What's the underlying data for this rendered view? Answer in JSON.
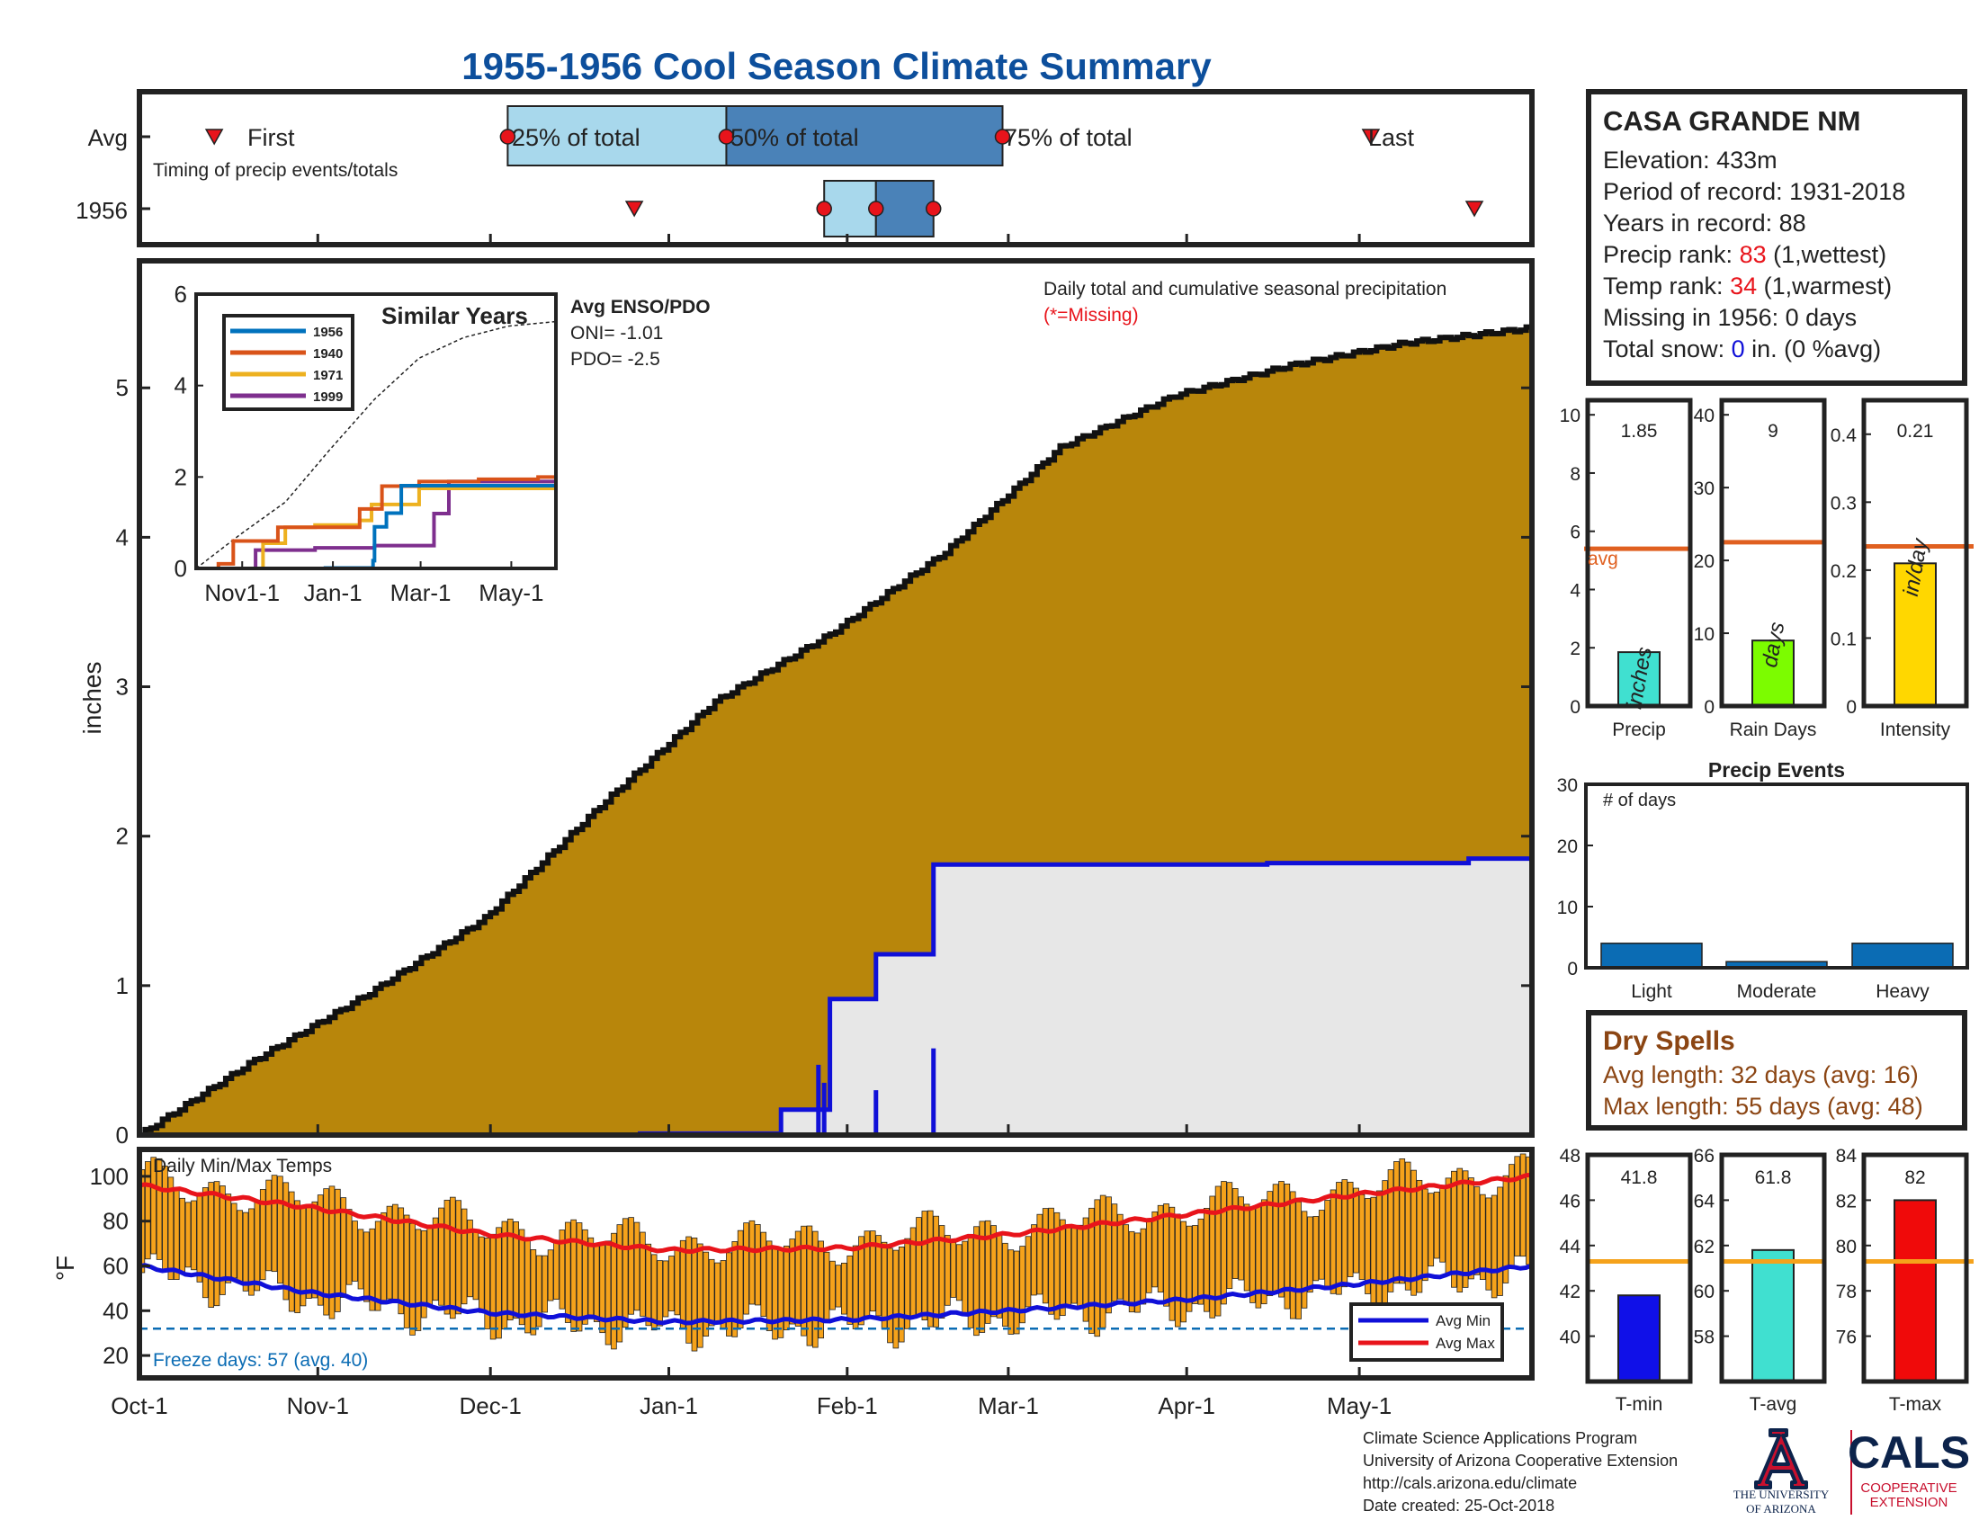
{
  "title": "1955-1956 Cool Season Climate Summary",
  "colors": {
    "title": "#0d4f9c",
    "accent_red": "#e8141b",
    "precip_fill": "#b8860b",
    "avg_precip_fill": "#e7e7e7",
    "avg_line": "#1010d8",
    "temp_bar": "#f5a21b",
    "avg_bar_line": "#e06020",
    "temp_avg_line": "#f5a21b",
    "light_blue": "#a8d8ec",
    "mid_blue": "#4a82b8",
    "bar_blue": "#0b6cb4",
    "brown_text": "#8b4513"
  },
  "timing": {
    "row_labels": [
      "Avg",
      "1956"
    ],
    "caption": "Timing of precip events/totals",
    "avg_labels": {
      "first": "First",
      "q25": "25% of total",
      "q50": "50% of total",
      "q75": "75% of total",
      "last": "Last"
    }
  },
  "station": {
    "name": "CASA GRANDE NM",
    "elevation": "Elevation: 433m",
    "period": "Period of record: 1931-2018",
    "years": "Years in record: 88",
    "precip_rank_prefix": "Precip rank: ",
    "precip_rank": "83",
    "precip_rank_suffix": " (1,wettest)",
    "temp_rank_prefix": "Temp rank: ",
    "temp_rank": "34",
    "temp_rank_suffix": " (1,warmest)",
    "missing": "Missing in 1956: 0 days",
    "snow_prefix": "Total snow: ",
    "snow_value": "0",
    "snow_suffix": " in. (0 %avg)"
  },
  "main_chart": {
    "ylabel": "inches",
    "yticks": [
      "0",
      "1",
      "2",
      "3",
      "4",
      "5"
    ],
    "caption": "Daily total and cumulative seasonal precipitation",
    "missing_note": "(*=Missing)",
    "xticks": [
      "Oct-1",
      "Nov-1",
      "Dec-1",
      "Jan-1",
      "Feb-1",
      "Mar-1",
      "Apr-1",
      "May-1"
    ]
  },
  "inset": {
    "title": "Similar Years",
    "legend": [
      "1956",
      "1940",
      "1971",
      "1999"
    ],
    "yticks": [
      "0",
      "2",
      "4",
      "6"
    ],
    "xticks": [
      "Nov1-1",
      "Jan-1",
      "Mar-1",
      "May-1"
    ],
    "enso_title": "Avg ENSO/PDO",
    "oni": "ONI= -1.01",
    "pdo": "PDO= -2.5"
  },
  "small_bars": [
    {
      "label": "Precip",
      "value_label": "1.85",
      "unit": "inches",
      "avg_label": "avg",
      "yticks": [
        "0",
        "2",
        "4",
        "6",
        "8",
        "10"
      ]
    },
    {
      "label": "Rain Days",
      "value_label": "9",
      "unit": "days",
      "yticks": [
        "0",
        "10",
        "20",
        "30",
        "40"
      ]
    },
    {
      "label": "Intensity",
      "value_label": "0.21",
      "unit": "in/day",
      "yticks": [
        "0",
        "0.1",
        "0.2",
        "0.3",
        "0.4"
      ]
    }
  ],
  "events": {
    "title": "Precip Events",
    "sublabel": "# of days",
    "yticks": [
      "0",
      "10",
      "20",
      "30"
    ],
    "categories": [
      "Light",
      "Moderate",
      "Heavy"
    ]
  },
  "dry_spells": {
    "title": "Dry Spells",
    "avg": "Avg length: 32 days (avg: 16)",
    "max": "Max length: 55 days (avg: 48)"
  },
  "temps": {
    "label": "Daily Min/Max Temps",
    "ylabel": "°F",
    "yticks": [
      "20",
      "40",
      "60",
      "80",
      "100"
    ],
    "freeze": "Freeze days: 57 (avg. 40)",
    "legend": [
      "Avg Min",
      "Avg Max"
    ]
  },
  "temp_bars": [
    {
      "label": "T-min",
      "value_label": "41.8",
      "yticks": [
        "40",
        "42",
        "44",
        "46",
        "48"
      ]
    },
    {
      "label": "T-avg",
      "value_label": "61.8",
      "yticks": [
        "58",
        "60",
        "62",
        "64",
        "66"
      ]
    },
    {
      "label": "T-max",
      "value_label": "82",
      "yticks": [
        "76",
        "78",
        "80",
        "82",
        "84"
      ]
    }
  ],
  "footer": {
    "line1": "Climate Science Applications Program",
    "line2": "University of Arizona Cooperative Extension",
    "line3": "http://cals.arizona.edu/climate",
    "line4": " Date created: 25-Oct-2018",
    "ua_logo_line1": "THE UNIVERSITY",
    "ua_logo_line2": "OF ARIZONA",
    "cals": "CALS",
    "cals_sub1": "COOPERATIVE",
    "cals_sub2": "EXTENSION"
  },
  "chart_data": [
    {
      "type": "area",
      "title": "Daily total and cumulative seasonal precipitation",
      "ylabel": "inches",
      "ylim": [
        0,
        5.85
      ],
      "x_range": [
        "Oct-1",
        "May-31"
      ],
      "series": [
        {
          "name": "Avg",
          "x_days": [
            0,
            20,
            40,
            60,
            80,
            100,
            120,
            140,
            160,
            180,
            200,
            220,
            242
          ],
          "values": [
            0,
            0.5,
            0.95,
            1.45,
            2.2,
            2.9,
            3.35,
            3.9,
            4.6,
            4.95,
            5.15,
            5.3,
            5.4
          ]
        },
        {
          "name": "1956",
          "x_days": [
            0,
            86,
            87,
            111,
            111.5,
            119,
            120,
            127,
            128,
            137,
            138,
            195,
            196,
            230,
            231,
            242
          ],
          "values": [
            0,
            0,
            0.01,
            0.01,
            0.17,
            0.17,
            0.91,
            0.91,
            1.21,
            1.21,
            1.81,
            1.81,
            1.82,
            1.82,
            1.85,
            1.85
          ]
        }
      ],
      "daily_bars": [
        {
          "day": 118,
          "value": 0.47
        },
        {
          "day": 119,
          "value": 0.35
        },
        {
          "day": 128,
          "value": 0.3
        },
        {
          "day": 138,
          "value": 0.58
        }
      ]
    },
    {
      "type": "line",
      "title": "Timing of precip events/totals",
      "avg_markers": {
        "First": 13,
        "25% of total": 64,
        "50% of total": 102,
        "75% of total": 150,
        "Last": 214
      },
      "year_1956_markers": {
        "First": 86,
        "25% of total": 119,
        "50% of total": 128,
        "75% of total": 138,
        "Last": 232
      }
    },
    {
      "type": "line",
      "title": "Similar Years",
      "ylim": [
        0,
        6
      ],
      "xticks": [
        "Nov1-1",
        "Jan-1",
        "Mar-1",
        "May-1"
      ],
      "series": [
        {
          "name": "1956",
          "x_days": [
            0,
            86,
            87,
            119,
            120,
            128,
            138,
            242
          ],
          "values": [
            0,
            0,
            0.01,
            0.17,
            0.91,
            1.21,
            1.81,
            1.85
          ]
        },
        {
          "name": "1940",
          "x_days": [
            0,
            15,
            25,
            35,
            55,
            80,
            110,
            125,
            150,
            190,
            230,
            242
          ],
          "values": [
            0,
            0.1,
            0.6,
            0.6,
            0.9,
            0.9,
            1.3,
            1.8,
            1.9,
            1.95,
            2.0,
            2.05
          ]
        },
        {
          "name": "1971",
          "x_days": [
            0,
            40,
            45,
            60,
            80,
            110,
            118,
            150,
            242
          ],
          "values": [
            0,
            0,
            0.55,
            0.9,
            0.95,
            1.05,
            1.4,
            1.75,
            1.75
          ]
        },
        {
          "name": "1999",
          "x_days": [
            0,
            30,
            40,
            60,
            80,
            100,
            120,
            150,
            160,
            170,
            242
          ],
          "values": [
            0,
            0,
            0.4,
            0.4,
            0.45,
            0.45,
            0.5,
            0.5,
            1.2,
            1.9,
            1.9
          ]
        },
        {
          "name": "Avg",
          "x_days": [
            0,
            30,
            60,
            90,
            120,
            150,
            180,
            210,
            242
          ],
          "values": [
            0,
            0.75,
            1.45,
            2.6,
            3.7,
            4.6,
            5.05,
            5.3,
            5.4
          ]
        }
      ]
    },
    {
      "type": "bar",
      "title": "Precip",
      "categories": [
        "Precip"
      ],
      "values": [
        1.85
      ],
      "avg": 5.4,
      "ylim": [
        0,
        10.5
      ]
    },
    {
      "type": "bar",
      "title": "Rain Days",
      "categories": [
        "Rain Days"
      ],
      "values": [
        9
      ],
      "avg": 22.5,
      "ylim": [
        0,
        42
      ]
    },
    {
      "type": "bar",
      "title": "Intensity",
      "categories": [
        "Intensity"
      ],
      "values": [
        0.21
      ],
      "avg": 0.235,
      "ylim": [
        0,
        0.45
      ]
    },
    {
      "type": "bar",
      "title": "Precip Events",
      "categories": [
        "Light",
        "Moderate",
        "Heavy"
      ],
      "values": [
        4,
        1,
        4
      ],
      "ylim": [
        0,
        30
      ]
    },
    {
      "type": "bar",
      "title": "Daily Min/Max Temps",
      "ylabel": "°F",
      "ylim": [
        10,
        112
      ],
      "freeze_line": 32,
      "avg_min_points": {
        "x_days": [
          0,
          30,
          61,
          92,
          123,
          151,
          182,
          212,
          242
        ],
        "values": [
          60,
          48,
          39,
          35,
          36,
          40,
          45,
          52,
          60
        ]
      },
      "avg_max_points": {
        "x_days": [
          0,
          30,
          61,
          92,
          123,
          151,
          182,
          212,
          242
        ],
        "values": [
          96,
          86,
          74,
          67,
          68,
          74,
          83,
          92,
          100
        ]
      }
    },
    {
      "type": "bar",
      "title": "T-min",
      "categories": [
        "T-min"
      ],
      "values": [
        41.8
      ],
      "avg": 43.3,
      "ylim": [
        38,
        48
      ]
    },
    {
      "type": "bar",
      "title": "T-avg",
      "categories": [
        "T-avg"
      ],
      "values": [
        61.8
      ],
      "avg": 61.3,
      "ylim": [
        56,
        66
      ]
    },
    {
      "type": "bar",
      "title": "T-max",
      "categories": [
        "T-max"
      ],
      "values": [
        82
      ],
      "avg": 79.3,
      "ylim": [
        74,
        84
      ]
    }
  ]
}
